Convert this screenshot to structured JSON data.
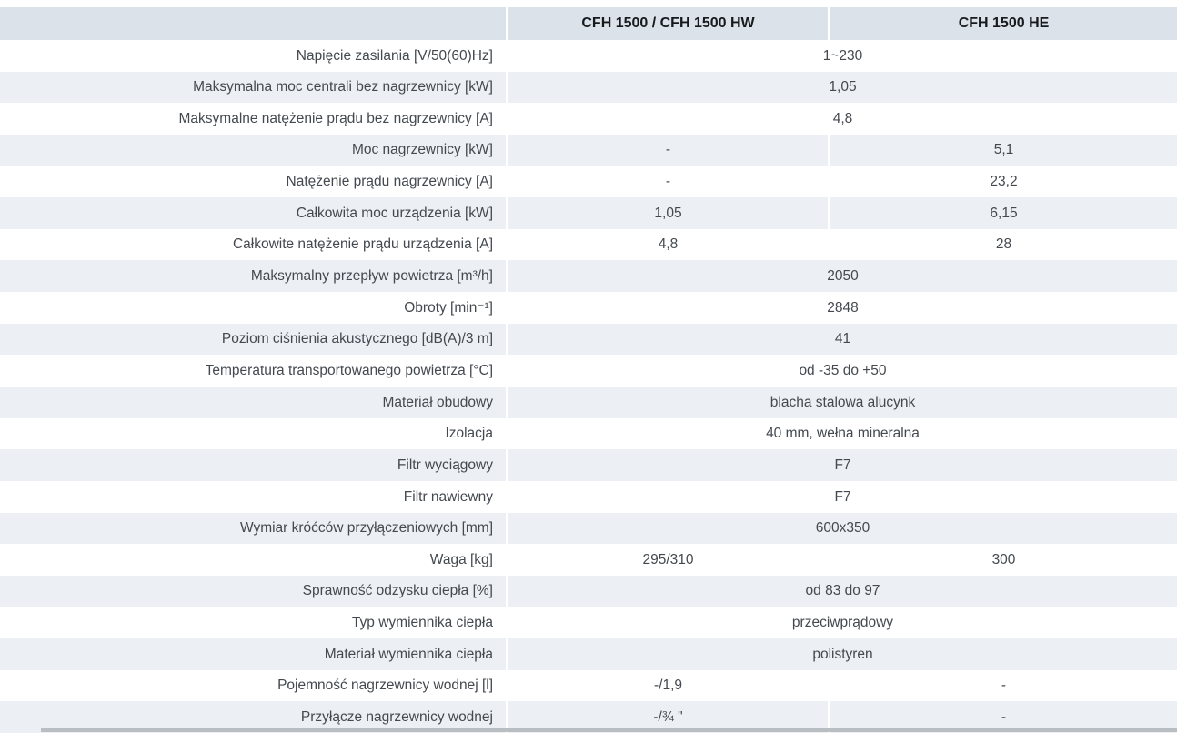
{
  "table": {
    "columns": [
      "CFH 1500 / CFH 1500 HW",
      "CFH 1500 HE"
    ],
    "rows": [
      {
        "label": "Napięcie zasilania [V/50(60)Hz]",
        "merged": true,
        "values": [
          "1~230"
        ]
      },
      {
        "label": "Maksymalna moc centrali bez nagrzewnicy [kW]",
        "merged": true,
        "values": [
          "1,05"
        ]
      },
      {
        "label": "Maksymalne natężenie prądu bez nagrzewnicy [A]",
        "merged": true,
        "values": [
          "4,8"
        ]
      },
      {
        "label": "Moc nagrzewnicy [kW]",
        "merged": false,
        "values": [
          "-",
          "5,1"
        ]
      },
      {
        "label": "Natężenie prądu nagrzewnicy [A]",
        "merged": false,
        "values": [
          "-",
          "23,2"
        ]
      },
      {
        "label": "Całkowita moc urządzenia [kW]",
        "merged": false,
        "values": [
          "1,05",
          "6,15"
        ]
      },
      {
        "label": "Całkowite natężenie prądu urządzenia [A]",
        "merged": false,
        "values": [
          "4,8",
          "28"
        ]
      },
      {
        "label": "Maksymalny przepływ powietrza [m³/h]",
        "merged": true,
        "values": [
          "2050"
        ]
      },
      {
        "label": "Obroty [min⁻¹]",
        "merged": true,
        "values": [
          "2848"
        ]
      },
      {
        "label": "Poziom ciśnienia akustycznego [dB(A)/3 m]",
        "merged": true,
        "values": [
          "41"
        ]
      },
      {
        "label": "Temperatura transportowanego powietrza [°C]",
        "merged": true,
        "values": [
          "od -35 do +50"
        ]
      },
      {
        "label": "Materiał obudowy",
        "merged": true,
        "values": [
          "blacha stalowa alucynk"
        ]
      },
      {
        "label": "Izolacja",
        "merged": true,
        "values": [
          "40 mm, wełna mineralna"
        ]
      },
      {
        "label": "Filtr wyciągowy",
        "merged": true,
        "values": [
          "F7"
        ]
      },
      {
        "label": "Filtr nawiewny",
        "merged": true,
        "values": [
          "F7"
        ]
      },
      {
        "label": "Wymiar króćców przyłączeniowych [mm]",
        "merged": true,
        "values": [
          "600x350"
        ]
      },
      {
        "label": "Waga [kg]",
        "merged": false,
        "values": [
          "295/310",
          "300"
        ]
      },
      {
        "label": "Sprawność odzysku ciepła [%]",
        "merged": true,
        "values": [
          "od 83 do 97"
        ]
      },
      {
        "label": "Typ wymiennika ciepła",
        "merged": true,
        "values": [
          "przeciwprądowy"
        ]
      },
      {
        "label": "Materiał wymiennika ciepła",
        "merged": true,
        "values": [
          "polistyren"
        ]
      },
      {
        "label": "Pojemność nagrzewnicy wodnej [l]",
        "merged": false,
        "values": [
          "-/1,9",
          "-"
        ]
      },
      {
        "label": "Przyłącze nagrzewnicy wodnej",
        "merged": false,
        "values": [
          "-/¾ \"",
          "-"
        ]
      }
    ],
    "colors": {
      "header_bg": "#dbe2e9",
      "row_shaded_bg": "#ecf0f4",
      "row_white_bg": "#ffffff",
      "text": "#44494f",
      "header_text": "#17191c",
      "bottom_bar": "#b9bec3"
    }
  }
}
